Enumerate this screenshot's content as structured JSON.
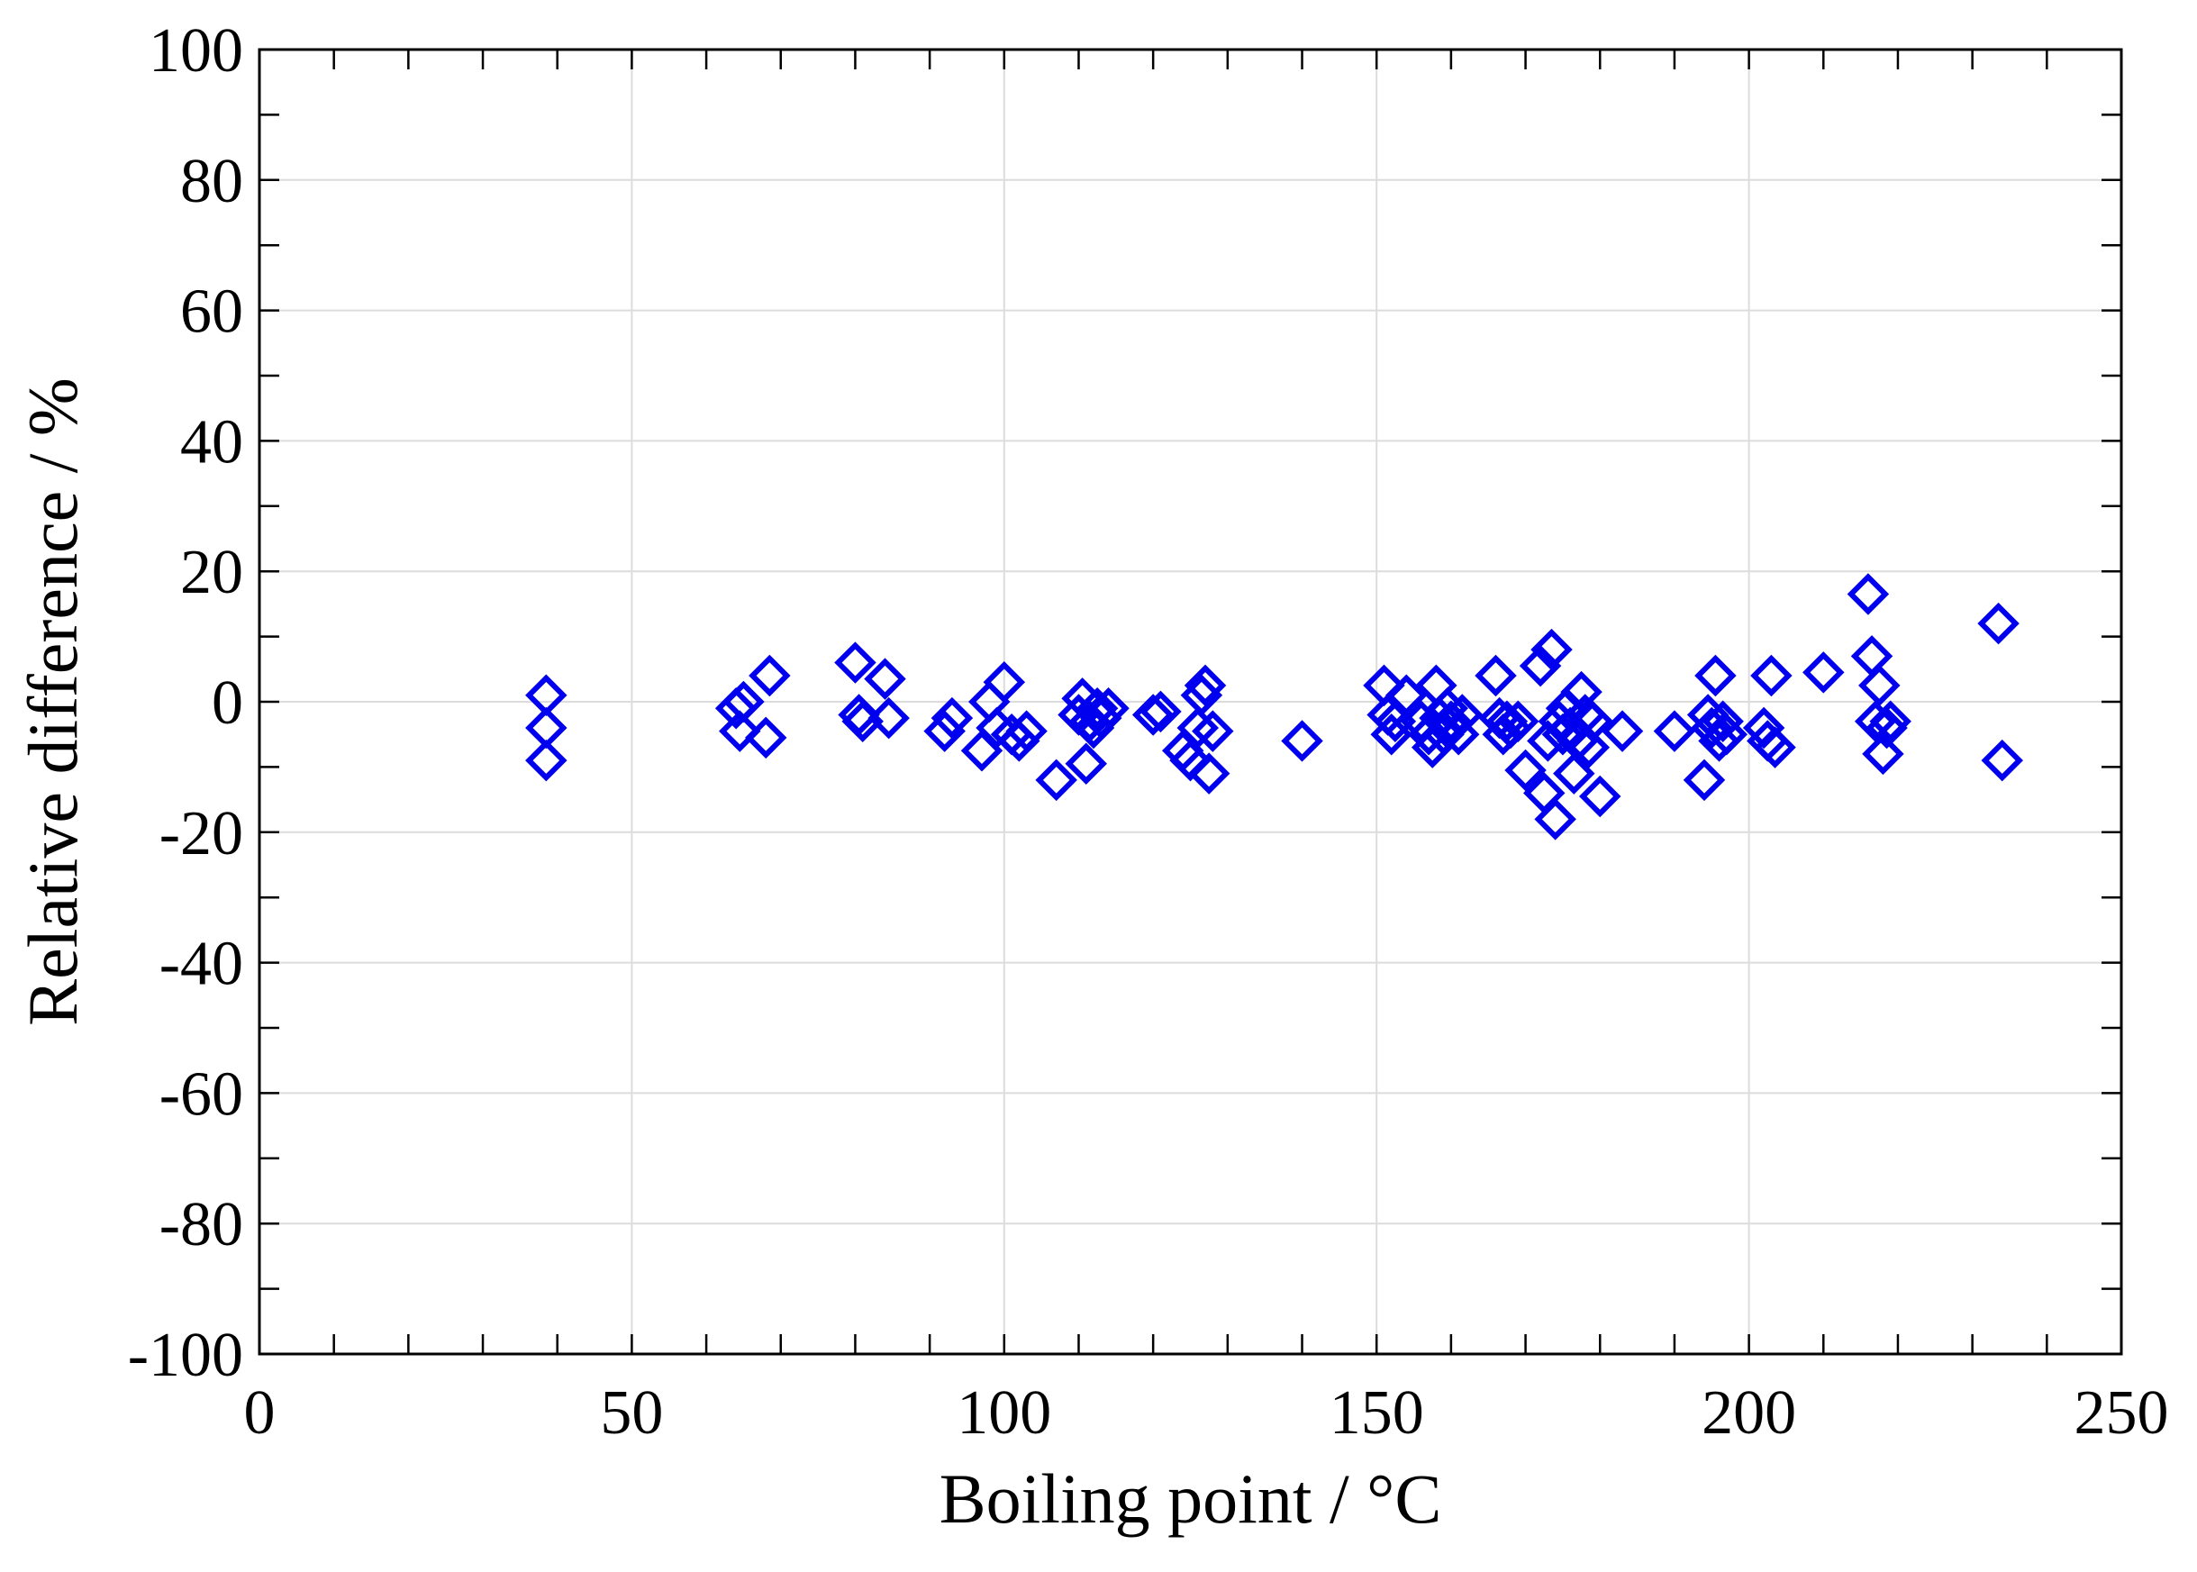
{
  "chart_data": {
    "type": "scatter",
    "xlabel": "Boiling point / °C",
    "ylabel": "Relative difference / %",
    "xlim": [
      0,
      250
    ],
    "ylim": [
      -100,
      100
    ],
    "x_ticks": [
      0,
      50,
      100,
      150,
      200,
      250
    ],
    "y_ticks": [
      -100,
      -80,
      -60,
      -40,
      -20,
      0,
      20,
      40,
      60,
      80,
      100
    ],
    "x_tick_labels": [
      "0",
      "50",
      "100",
      "150",
      "200",
      "250"
    ],
    "y_tick_labels": [
      "-100",
      "-80",
      "-60",
      "-40",
      "-20",
      "0",
      "20",
      "40",
      "60",
      "80",
      "100"
    ],
    "x_minor_step": 10,
    "y_minor_step": 10,
    "grid": true,
    "marker": "open-diamond",
    "marker_color": "#0000ee",
    "series": [
      {
        "points": [
          [
            38.5,
            1
          ],
          [
            38.5,
            -4
          ],
          [
            38.5,
            -9
          ],
          [
            64,
            -1
          ],
          [
            64.5,
            -4.5
          ],
          [
            65,
            0
          ],
          [
            68,
            -5.5
          ],
          [
            68.5,
            4
          ],
          [
            80,
            6
          ],
          [
            80.5,
            -2
          ],
          [
            81,
            -3
          ],
          [
            84,
            3.5
          ],
          [
            84.5,
            -2.5
          ],
          [
            92,
            -4.5
          ],
          [
            93,
            -2.5
          ],
          [
            97,
            -7.5
          ],
          [
            98,
            0
          ],
          [
            99,
            -4
          ],
          [
            100,
            3
          ],
          [
            101,
            -5
          ],
          [
            102,
            -6
          ],
          [
            103,
            -4.5
          ],
          [
            107,
            -12
          ],
          [
            110,
            -2
          ],
          [
            110.5,
            0.5
          ],
          [
            111,
            -9.5
          ],
          [
            111.5,
            -3
          ],
          [
            112,
            -4
          ],
          [
            112.5,
            -1
          ],
          [
            113,
            -2.5
          ],
          [
            114,
            -1
          ],
          [
            120,
            -2
          ],
          [
            121,
            -1.5
          ],
          [
            124,
            -7.5
          ],
          [
            125,
            -9
          ],
          [
            126,
            -4
          ],
          [
            126.5,
            1
          ],
          [
            127,
            2.5
          ],
          [
            127.5,
            -11
          ],
          [
            128,
            -4.5
          ],
          [
            140,
            -6
          ],
          [
            151,
            2.5
          ],
          [
            151.5,
            -2
          ],
          [
            152,
            -5
          ],
          [
            152.5,
            -3
          ],
          [
            154,
            1
          ],
          [
            156,
            -3
          ],
          [
            157,
            -5
          ],
          [
            157.5,
            -7
          ],
          [
            158,
            2.5
          ],
          [
            158.5,
            -2.5
          ],
          [
            159,
            -5
          ],
          [
            159.5,
            -1
          ],
          [
            160,
            -3
          ],
          [
            161,
            -5
          ],
          [
            161.5,
            -2
          ],
          [
            166,
            4
          ],
          [
            166.5,
            -2.5
          ],
          [
            167,
            -5
          ],
          [
            167.5,
            -3
          ],
          [
            168,
            -4
          ],
          [
            169,
            -3
          ],
          [
            170,
            -10.5
          ],
          [
            172,
            5.5
          ],
          [
            172.5,
            -14
          ],
          [
            173,
            -6
          ],
          [
            173.5,
            8
          ],
          [
            174,
            -18
          ],
          [
            174.5,
            -3
          ],
          [
            175,
            -5
          ],
          [
            175.5,
            -1
          ],
          [
            176,
            -4
          ],
          [
            176.5,
            -11
          ],
          [
            177,
            -6
          ],
          [
            177.5,
            1.5
          ],
          [
            178,
            -2
          ],
          [
            178.5,
            -7
          ],
          [
            179,
            -3
          ],
          [
            180,
            -14.5
          ],
          [
            183,
            -4.5
          ],
          [
            190,
            -4.5
          ],
          [
            194,
            -12
          ],
          [
            194.5,
            -2
          ],
          [
            195,
            -4
          ],
          [
            195.5,
            4
          ],
          [
            196,
            -6
          ],
          [
            196.5,
            -3
          ],
          [
            197,
            -5
          ],
          [
            202,
            -4
          ],
          [
            202.5,
            -6
          ],
          [
            203,
            4
          ],
          [
            203.5,
            -7
          ],
          [
            210,
            4.5
          ],
          [
            216,
            16.5
          ],
          [
            216.5,
            7
          ],
          [
            217,
            -3
          ],
          [
            217.5,
            2.5
          ],
          [
            218,
            -8
          ],
          [
            218.5,
            -4
          ],
          [
            219,
            -3
          ],
          [
            233.5,
            12
          ],
          [
            234,
            -9
          ]
        ]
      }
    ]
  }
}
